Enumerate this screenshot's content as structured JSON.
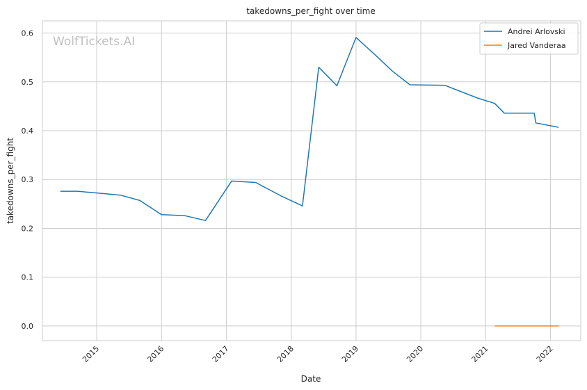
{
  "watermark": "WolfTickets.AI",
  "chart_data": {
    "type": "line",
    "title": "takedowns_per_fight over time",
    "xlabel": "Date",
    "ylabel": "takedowns_per_fight",
    "xlim": [
      "2014-03-01",
      "2022-06-20"
    ],
    "ylim": [
      -0.03,
      0.625
    ],
    "x_ticks": [
      {
        "date": "2015-01-01",
        "label": "2015"
      },
      {
        "date": "2016-01-01",
        "label": "2016"
      },
      {
        "date": "2017-01-01",
        "label": "2017"
      },
      {
        "date": "2018-01-01",
        "label": "2018"
      },
      {
        "date": "2019-01-01",
        "label": "2019"
      },
      {
        "date": "2020-01-01",
        "label": "2020"
      },
      {
        "date": "2021-01-01",
        "label": "2021"
      },
      {
        "date": "2022-01-01",
        "label": "2022"
      }
    ],
    "y_ticks": [
      {
        "value": 0.0,
        "label": "0.0"
      },
      {
        "value": 0.1,
        "label": "0.1"
      },
      {
        "value": 0.2,
        "label": "0.2"
      },
      {
        "value": 0.3,
        "label": "0.3"
      },
      {
        "value": 0.4,
        "label": "0.4"
      },
      {
        "value": 0.5,
        "label": "0.5"
      },
      {
        "value": 0.6,
        "label": "0.6"
      }
    ],
    "grid": true,
    "legend_position": "top-right",
    "series": [
      {
        "name": "Andrei Arlovski",
        "color": "#1f77b4",
        "points": [
          [
            "2014-06-10",
            0.276
          ],
          [
            "2014-09-15",
            0.276
          ],
          [
            "2015-01-15",
            0.272
          ],
          [
            "2015-05-15",
            0.268
          ],
          [
            "2015-09-01",
            0.257
          ],
          [
            "2016-01-01",
            0.228
          ],
          [
            "2016-05-10",
            0.226
          ],
          [
            "2016-09-05",
            0.216
          ],
          [
            "2017-01-30",
            0.297
          ],
          [
            "2017-06-15",
            0.294
          ],
          [
            "2017-11-01",
            0.267
          ],
          [
            "2018-03-05",
            0.246
          ],
          [
            "2018-06-05",
            0.53
          ],
          [
            "2018-09-15",
            0.492
          ],
          [
            "2019-01-01",
            0.591
          ],
          [
            "2019-04-20",
            0.555
          ],
          [
            "2019-07-25",
            0.522
          ],
          [
            "2019-11-01",
            0.494
          ],
          [
            "2020-05-15",
            0.493
          ],
          [
            "2020-11-15",
            0.467
          ],
          [
            "2021-02-20",
            0.456
          ],
          [
            "2021-04-15",
            0.436
          ],
          [
            "2021-10-01",
            0.436
          ],
          [
            "2021-10-10",
            0.416
          ],
          [
            "2022-02-15",
            0.407
          ]
        ]
      },
      {
        "name": "Jared Vanderaa",
        "color": "#ff7f0e",
        "points": [
          [
            "2021-02-20",
            0.0
          ],
          [
            "2021-06-01",
            0.0
          ],
          [
            "2021-10-10",
            0.0
          ],
          [
            "2022-02-15",
            0.0
          ]
        ]
      }
    ]
  }
}
